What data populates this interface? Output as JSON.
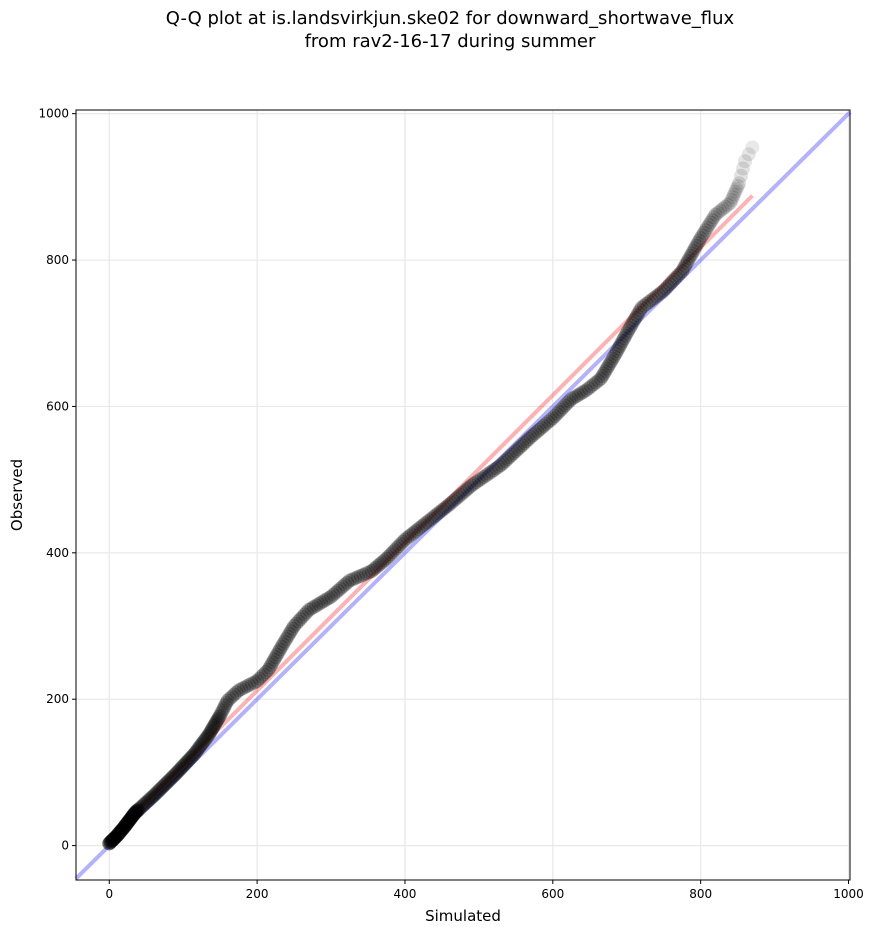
{
  "chart_data": {
    "type": "scatter",
    "title_lines": [
      "Q-Q plot at is.landsvirkjun.ske02 for downward_shortwave_flux",
      "from rav2-16-17 during summer"
    ],
    "xlabel": "Simulated",
    "ylabel": "Observed",
    "xlim": [
      -45,
      1002
    ],
    "ylim": [
      -47,
      1005
    ],
    "xticks": [
      0,
      200,
      400,
      600,
      800,
      1000
    ],
    "yticks": [
      0,
      200,
      400,
      600,
      800,
      1000
    ],
    "grid": true,
    "colors": {
      "points": "#000000",
      "one_to_one_line": "#0000ff",
      "fit_line": "#ff0000",
      "grid": "#e8e8e8"
    },
    "one_to_one_line": {
      "x": [
        -45,
        1002
      ],
      "y": [
        -45,
        1002
      ]
    },
    "fit_line": {
      "x": [
        0,
        870
      ],
      "y": [
        10,
        888
      ]
    },
    "quantile_anchors": [
      [
        0,
        3
      ],
      [
        10,
        13
      ],
      [
        20,
        25
      ],
      [
        35,
        45
      ],
      [
        60,
        68
      ],
      [
        90,
        98
      ],
      [
        115,
        125
      ],
      [
        135,
        152
      ],
      [
        150,
        178
      ],
      [
        160,
        198
      ],
      [
        175,
        212
      ],
      [
        200,
        225
      ],
      [
        215,
        240
      ],
      [
        235,
        275
      ],
      [
        250,
        300
      ],
      [
        270,
        322
      ],
      [
        300,
        340
      ],
      [
        325,
        362
      ],
      [
        355,
        375
      ],
      [
        375,
        392
      ],
      [
        400,
        418
      ],
      [
        430,
        442
      ],
      [
        460,
        466
      ],
      [
        490,
        492
      ],
      [
        530,
        520
      ],
      [
        570,
        558
      ],
      [
        600,
        584
      ],
      [
        625,
        610
      ],
      [
        645,
        622
      ],
      [
        665,
        638
      ],
      [
        685,
        672
      ],
      [
        700,
        700
      ],
      [
        720,
        735
      ],
      [
        750,
        758
      ],
      [
        775,
        785
      ],
      [
        800,
        830
      ],
      [
        820,
        862
      ],
      [
        840,
        878
      ],
      [
        852,
        905
      ],
      [
        860,
        935
      ],
      [
        870,
        954
      ]
    ]
  }
}
